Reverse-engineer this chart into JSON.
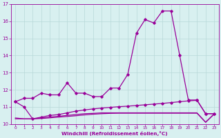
{
  "x": [
    0,
    1,
    2,
    3,
    4,
    5,
    6,
    7,
    8,
    9,
    10,
    11,
    12,
    13,
    14,
    15,
    16,
    17,
    18,
    19,
    20,
    21,
    22,
    23
  ],
  "line1": [
    11.3,
    11.5,
    11.5,
    11.8,
    11.7,
    11.7,
    12.4,
    11.8,
    11.8,
    11.6,
    11.6,
    12.1,
    12.1,
    12.9,
    15.3,
    16.1,
    15.9,
    16.6,
    16.6,
    14.0,
    11.4,
    11.4,
    10.6,
    10.6
  ],
  "line2": [
    11.3,
    11.0,
    10.3,
    10.4,
    10.5,
    10.55,
    10.65,
    10.75,
    10.82,
    10.88,
    10.93,
    10.97,
    11.01,
    11.04,
    11.08,
    11.12,
    11.16,
    11.2,
    11.25,
    11.3,
    11.35,
    11.38,
    10.6,
    10.6
  ],
  "line3": [
    10.35,
    10.3,
    10.3,
    10.35,
    10.4,
    10.45,
    10.5,
    10.55,
    10.6,
    10.62,
    10.65,
    10.65,
    10.65,
    10.65,
    10.65,
    10.65,
    10.65,
    10.65,
    10.65,
    10.65,
    10.65,
    10.65,
    10.1,
    10.6
  ],
  "line4": [
    10.3,
    10.3,
    10.3,
    10.32,
    10.36,
    10.4,
    10.44,
    10.48,
    10.53,
    10.57,
    10.6,
    10.62,
    10.63,
    10.63,
    10.63,
    10.63,
    10.63,
    10.63,
    10.63,
    10.63,
    10.63,
    10.63,
    10.1,
    10.58
  ],
  "line_color": "#990099",
  "bg_color": "#d8f0f0",
  "grid_color": "#b8d8d8",
  "xlabel": "Windchill (Refroidissement éolien,°C)",
  "ylim": [
    10.0,
    17.0
  ],
  "xlim": [
    -0.5,
    23.5
  ],
  "yticks": [
    10,
    11,
    12,
    13,
    14,
    15,
    16,
    17
  ],
  "xticks": [
    0,
    1,
    2,
    3,
    4,
    5,
    6,
    7,
    8,
    9,
    10,
    11,
    12,
    13,
    14,
    15,
    16,
    17,
    18,
    19,
    20,
    21,
    22,
    23
  ]
}
